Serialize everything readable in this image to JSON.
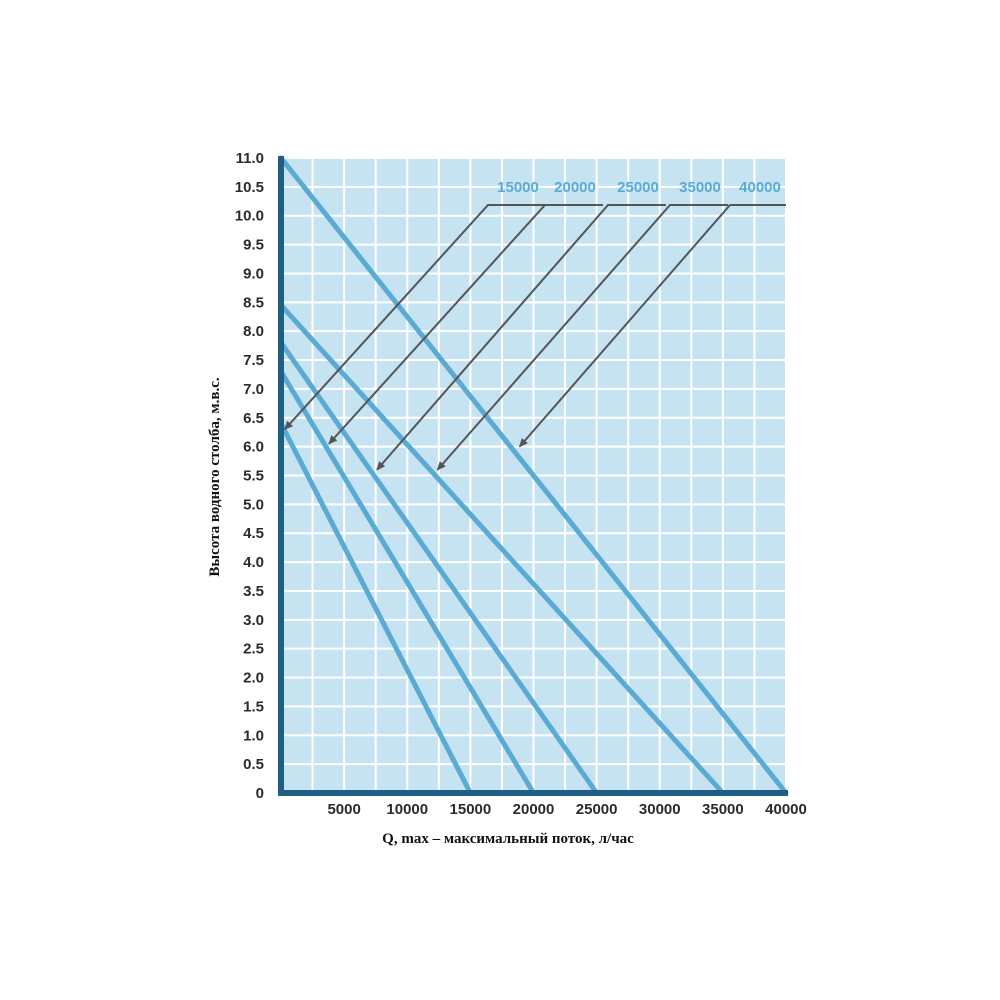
{
  "chart_data": {
    "type": "line",
    "title": "",
    "xlabel": "Q, max – максимальный поток, л/час",
    "ylabel": "Высота водного столба, м.в.с.",
    "xlim": [
      0,
      40000
    ],
    "ylim": [
      0,
      11
    ],
    "x_ticks": [
      "5000",
      "10000",
      "15000",
      "20000",
      "25000",
      "30000",
      "35000",
      "40000"
    ],
    "y_ticks": [
      "0",
      "0.5",
      "1.0",
      "1.5",
      "2.0",
      "2.5",
      "3.0",
      "3.5",
      "4.0",
      "4.5",
      "5.0",
      "5.5",
      "6.0",
      "6.5",
      "7.0",
      "7.5",
      "8.0",
      "8.5",
      "9.0",
      "9.5",
      "10.0",
      "10.5",
      "11.0"
    ],
    "grid": true,
    "legend_position": "top-right",
    "colors": {
      "background": "#c6e3f2",
      "grid": "#ffffff",
      "series": "#5aaad4",
      "axis": "#1f5f86",
      "pointer": "#555555",
      "legend_text": "#5aaad4"
    },
    "series": [
      {
        "name": "15000",
        "x": [
          0,
          15000
        ],
        "y": [
          6.4,
          0
        ],
        "pointer_x": 300,
        "pointer_y": 6.3
      },
      {
        "name": "20000",
        "x": [
          0,
          20000
        ],
        "y": [
          7.3,
          0
        ],
        "pointer_x": 3800,
        "pointer_y": 6.05
      },
      {
        "name": "25000",
        "x": [
          0,
          25000
        ],
        "y": [
          7.8,
          0
        ],
        "pointer_x": 7600,
        "pointer_y": 5.6
      },
      {
        "name": "35000",
        "x": [
          0,
          35000
        ],
        "y": [
          8.45,
          0
        ],
        "pointer_x": 12400,
        "pointer_y": 5.6
      },
      {
        "name": "40000",
        "x": [
          0,
          40000
        ],
        "y": [
          11.0,
          0
        ],
        "pointer_x": 18900,
        "pointer_y": 6.0
      }
    ]
  }
}
